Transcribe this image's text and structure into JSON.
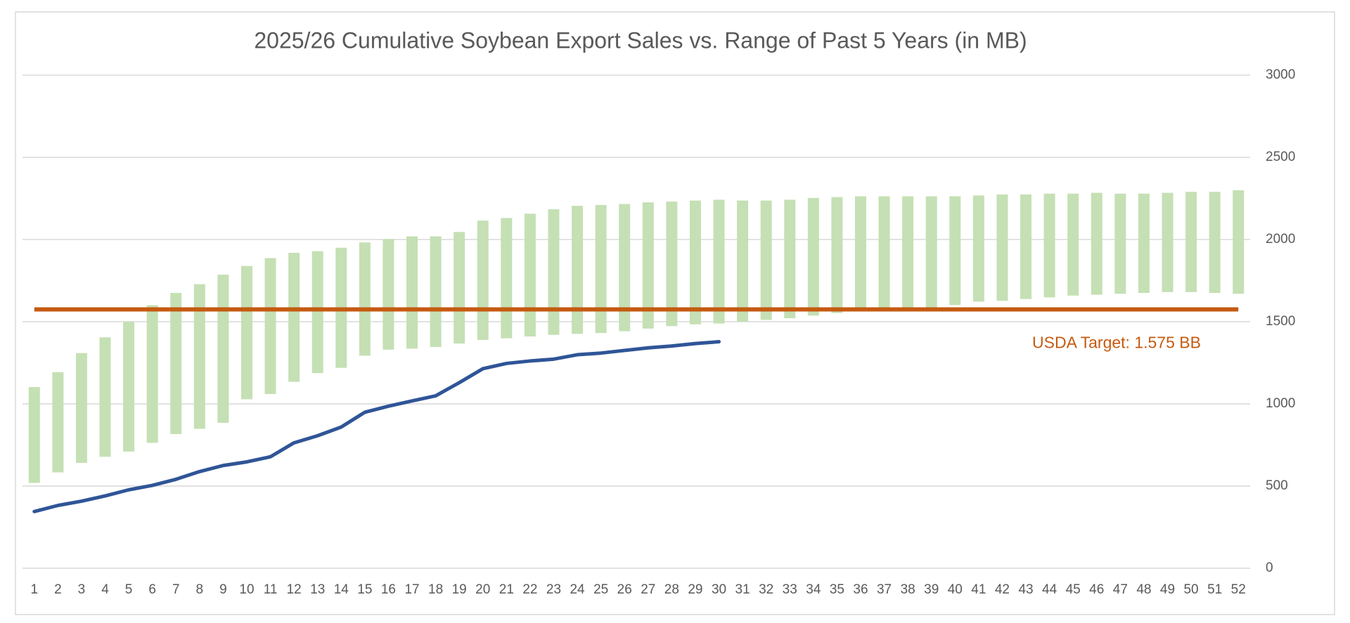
{
  "chart_data": {
    "type": "floating_bar",
    "title": "2025/26 Cumulative Soybean Export Sales vs. Range of Past 5 Years (in MB)",
    "categories": [
      1,
      2,
      3,
      4,
      5,
      6,
      7,
      8,
      9,
      10,
      11,
      12,
      13,
      14,
      15,
      16,
      17,
      18,
      19,
      20,
      21,
      22,
      23,
      24,
      25,
      26,
      27,
      28,
      29,
      30,
      31,
      32,
      33,
      34,
      35,
      36,
      37,
      38,
      39,
      40,
      41,
      42,
      43,
      44,
      45,
      46,
      47,
      48,
      49,
      50,
      51,
      52
    ],
    "range": {
      "color": "#c5e0b4",
      "low": [
        519,
        583,
        641,
        678,
        710,
        763,
        816,
        848,
        885,
        1028,
        1060,
        1134,
        1187,
        1219,
        1293,
        1330,
        1336,
        1346,
        1367,
        1389,
        1399,
        1410,
        1420,
        1426,
        1431,
        1442,
        1458,
        1473,
        1484,
        1489,
        1500,
        1511,
        1521,
        1537,
        1553,
        1569,
        1580,
        1585,
        1585,
        1601,
        1622,
        1627,
        1638,
        1648,
        1659,
        1664,
        1670,
        1675,
        1680,
        1680,
        1675,
        1670
      ],
      "high": [
        1102,
        1193,
        1309,
        1405,
        1500,
        1600,
        1675,
        1728,
        1786,
        1839,
        1887,
        1919,
        1929,
        1950,
        1982,
        2003,
        2019,
        2019,
        2046,
        2115,
        2131,
        2157,
        2184,
        2205,
        2210,
        2216,
        2226,
        2231,
        2237,
        2242,
        2237,
        2237,
        2242,
        2253,
        2258,
        2263,
        2263,
        2263,
        2263,
        2263,
        2268,
        2274,
        2274,
        2279,
        2279,
        2284,
        2279,
        2279,
        2284,
        2290,
        2290,
        2300
      ]
    },
    "line": {
      "color": "#2f5597",
      "values": [
        345,
        382,
        408,
        440,
        477,
        504,
        541,
        588,
        625,
        647,
        678,
        763,
        806,
        859,
        949,
        986,
        1018,
        1049,
        1129,
        1214,
        1246,
        1261,
        1272,
        1299,
        1309,
        1325,
        1341,
        1352,
        1367,
        1378,
        null,
        null,
        null,
        null,
        null,
        null,
        null,
        null,
        null,
        null,
        null,
        null,
        null,
        null,
        null,
        null,
        null,
        null,
        null,
        null,
        null,
        null
      ]
    },
    "target": {
      "value": 1575,
      "color": "#c55a11",
      "label": "USDA Target: 1.575 BB"
    },
    "ylim": [
      0,
      3000
    ],
    "yticks": [
      0,
      500,
      1000,
      1500,
      2000,
      2500,
      3000
    ],
    "grid": true
  }
}
